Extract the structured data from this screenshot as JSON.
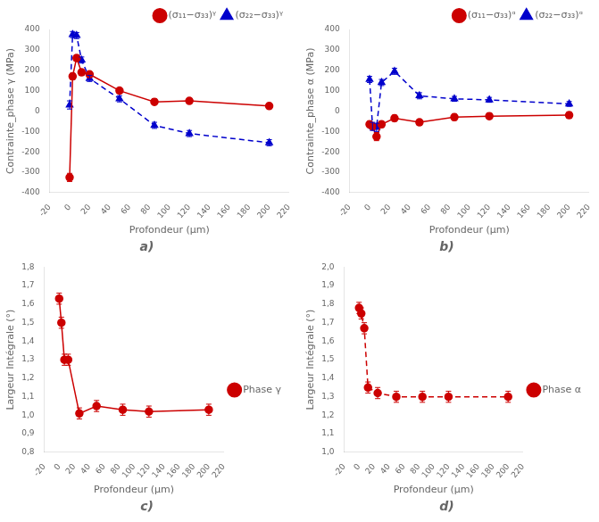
{
  "chart_data": [
    {
      "type": "line",
      "title": "a)",
      "x_label": "Profondeur (μm)",
      "y_label": "Contrainte_phase γ (MPa)",
      "x": [
        0,
        3,
        7,
        12,
        20,
        50,
        85,
        120,
        200
      ],
      "series": [
        {
          "name": "(σ₁₁−σ₃₃)ᵞ",
          "color": "#cc0000",
          "marker": "circle",
          "line_style": "solid",
          "values": [
            -325,
            170,
            260,
            190,
            180,
            100,
            45,
            50,
            25
          ],
          "yerr": [
            20,
            15,
            15,
            15,
            12,
            12,
            15,
            12,
            12
          ]
        },
        {
          "name": "(σ₂₂−σ₃₃)ᵞ",
          "color": "#0000cc",
          "marker": "triangle",
          "line_style": "dashed",
          "values": [
            30,
            375,
            370,
            250,
            160,
            60,
            -70,
            -110,
            -155
          ],
          "yerr": [
            20,
            15,
            15,
            15,
            15,
            15,
            15,
            15,
            15
          ]
        }
      ],
      "xlim": [
        -20,
        220
      ],
      "xticks": [
        -20,
        0,
        20,
        40,
        60,
        80,
        100,
        120,
        140,
        160,
        180,
        200,
        220
      ],
      "ylim": [
        -400,
        400
      ],
      "yticks": [
        -400,
        -300,
        -200,
        -100,
        0,
        100,
        200,
        300,
        400
      ],
      "grid": false,
      "legend": "upper right"
    },
    {
      "type": "line",
      "title": "b)",
      "x_label": "Profondeur (μm)",
      "y_label": "Contrainte_phase α (MPa)",
      "x": [
        0,
        3,
        7,
        12,
        25,
        50,
        85,
        120,
        200
      ],
      "series": [
        {
          "name": "(σ₁₁−σ₃₃)ᵅ",
          "color": "#cc0000",
          "marker": "circle",
          "line_style": "solid",
          "values": [
            -65,
            -75,
            -125,
            -65,
            -35,
            -55,
            -30,
            -25,
            -20
          ],
          "yerr": [
            15,
            15,
            20,
            15,
            15,
            15,
            15,
            15,
            15
          ]
        },
        {
          "name": "(σ₂₂−σ₃₃)ᵅ",
          "color": "#0000cc",
          "marker": "triangle",
          "line_style": "dashed",
          "values": [
            155,
            -75,
            -80,
            140,
            195,
            75,
            60,
            55,
            35
          ],
          "yerr": [
            15,
            20,
            20,
            15,
            15,
            15,
            12,
            12,
            12
          ]
        }
      ],
      "xlim": [
        -20,
        220
      ],
      "xticks": [
        -20,
        0,
        20,
        40,
        60,
        80,
        100,
        120,
        140,
        160,
        180,
        200,
        220
      ],
      "ylim": [
        -400,
        400
      ],
      "yticks": [
        -400,
        -300,
        -200,
        -100,
        0,
        100,
        200,
        300,
        400
      ],
      "grid": false,
      "legend": "upper right"
    },
    {
      "type": "line",
      "title": "c)",
      "x_label": "Profondeur (μm)",
      "y_label": "Largeur Intégrale (°)",
      "x": [
        0,
        3,
        7,
        12,
        27,
        50,
        85,
        120,
        200
      ],
      "series": [
        {
          "name": "Phase γ",
          "color": "#cc0000",
          "marker": "circle",
          "line_style": "solid",
          "values": [
            1.63,
            1.5,
            1.3,
            1.3,
            1.01,
            1.05,
            1.03,
            1.02,
            1.03
          ],
          "yerr": [
            0.03,
            0.03,
            0.03,
            0.03,
            0.03,
            0.03,
            0.03,
            0.03,
            0.03
          ]
        }
      ],
      "xlim": [
        -20,
        220
      ],
      "xticks": [
        -20,
        0,
        20,
        40,
        60,
        80,
        100,
        120,
        140,
        160,
        180,
        200,
        220
      ],
      "ylim": [
        0.8,
        1.8
      ],
      "yticks": [
        {
          "value": 0.8,
          "label": "0,8"
        },
        {
          "value": 0.9,
          "label": "0,9"
        },
        {
          "value": 1.0,
          "label": "1,0"
        },
        {
          "value": 1.1,
          "label": "1,1"
        },
        {
          "value": 1.2,
          "label": "1,2"
        },
        {
          "value": 1.3,
          "label": "1,3"
        },
        {
          "value": 1.4,
          "label": "1,4"
        },
        {
          "value": 1.5,
          "label": "1,5"
        },
        {
          "value": 1.6,
          "label": "1,6"
        },
        {
          "value": 1.7,
          "label": "1,7"
        },
        {
          "value": 1.8,
          "label": "1,8"
        }
      ],
      "grid": false,
      "legend": "center right"
    },
    {
      "type": "line",
      "title": "d)",
      "x_label": "Profondeur (μm)",
      "y_label": "Largeur Intégrale (°)",
      "x": [
        0,
        3,
        7,
        12,
        25,
        50,
        85,
        120,
        200
      ],
      "series": [
        {
          "name": "Phase α",
          "color": "#cc0000",
          "marker": "circle",
          "line_style": "dashed",
          "values": [
            1.78,
            1.75,
            1.67,
            1.35,
            1.32,
            1.3,
            1.3,
            1.3,
            1.3
          ],
          "yerr": [
            0.03,
            0.03,
            0.03,
            0.03,
            0.03,
            0.03,
            0.03,
            0.03,
            0.03
          ]
        }
      ],
      "xlim": [
        -20,
        220
      ],
      "xticks": [
        -20,
        0,
        20,
        40,
        60,
        80,
        100,
        120,
        140,
        160,
        180,
        200,
        220
      ],
      "ylim": [
        1.0,
        2.0
      ],
      "yticks": [
        {
          "value": 1.0,
          "label": "1,0"
        },
        {
          "value": 1.1,
          "label": "1,1"
        },
        {
          "value": 1.2,
          "label": "1,2"
        },
        {
          "value": 1.3,
          "label": "1,3"
        },
        {
          "value": 1.4,
          "label": "1,4"
        },
        {
          "value": 1.5,
          "label": "1,5"
        },
        {
          "value": 1.6,
          "label": "1,6"
        },
        {
          "value": 1.7,
          "label": "1,7"
        },
        {
          "value": 1.8,
          "label": "1,8"
        },
        {
          "value": 1.9,
          "label": "1,9"
        },
        {
          "value": 2.0,
          "label": "2,0"
        }
      ],
      "grid": false,
      "legend": "center right"
    }
  ]
}
